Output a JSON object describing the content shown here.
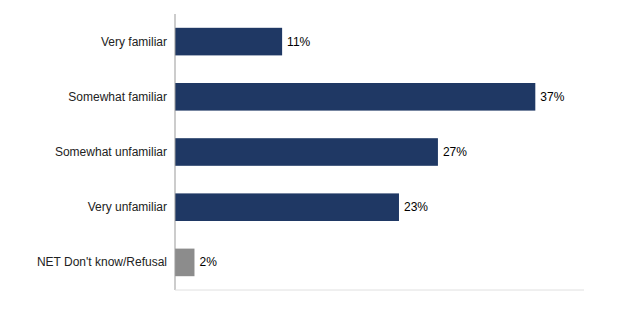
{
  "chart_data": {
    "type": "bar",
    "orientation": "horizontal",
    "categories": [
      "Very familiar",
      "Somewhat familiar",
      "Somewhat unfamiliar",
      "Very unfamiliar",
      "NET Don't know/Refusal"
    ],
    "values": [
      11,
      37,
      27,
      23,
      2
    ],
    "value_labels": [
      "11%",
      "37%",
      "27%",
      "23%",
      "2%"
    ],
    "colors": [
      "#1f3864",
      "#1f3864",
      "#1f3864",
      "#1f3864",
      "#8c8c8c"
    ],
    "xlim": [
      0,
      42
    ],
    "data_labels": true,
    "tick_labels": "y",
    "grid": false
  }
}
